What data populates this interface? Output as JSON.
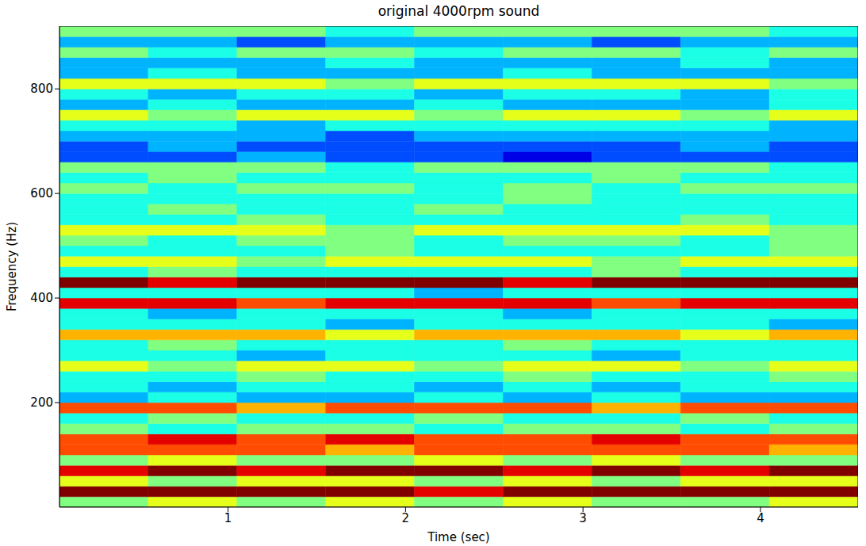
{
  "chart_data": {
    "type": "heatmap",
    "title": "original 4000rpm sound",
    "x_label": "Time (sec)",
    "y_label": "Frequency (Hz)",
    "xlim": [
      0.05,
      4.55
    ],
    "ylim": [
      0,
      920
    ],
    "xticks": [
      1,
      2,
      3,
      4
    ],
    "yticks": [
      200,
      400,
      600,
      800
    ],
    "color_range": [
      0,
      10
    ],
    "time_bins": [
      0.05,
      0.55,
      1.05,
      1.55,
      2.05,
      2.55,
      3.05,
      3.55,
      4.05,
      4.55
    ],
    "frequency_bins": [
      0,
      20,
      40,
      60,
      80,
      100,
      120,
      140,
      160,
      180,
      200,
      220,
      240,
      260,
      280,
      300,
      320,
      340,
      360,
      380,
      400,
      420,
      440,
      460,
      480,
      500,
      520,
      540,
      560,
      580,
      600,
      620,
      640,
      660,
      680,
      700,
      720,
      740,
      760,
      780,
      800,
      820,
      840,
      860,
      880,
      900,
      920
    ],
    "cells": [
      [
        5,
        6,
        5,
        6,
        5,
        6,
        5,
        5,
        6
      ],
      [
        10,
        10,
        10,
        10,
        9,
        10,
        10,
        10,
        10
      ],
      [
        6,
        5,
        6,
        6,
        5,
        6,
        5,
        6,
        6
      ],
      [
        9,
        10,
        9,
        10,
        10,
        9,
        10,
        9,
        10
      ],
      [
        5,
        6,
        5,
        5,
        6,
        5,
        6,
        5,
        5
      ],
      [
        8,
        8,
        8,
        7,
        8,
        8,
        8,
        8,
        7
      ],
      [
        8,
        9,
        8,
        9,
        8,
        8,
        9,
        8,
        8
      ],
      [
        5,
        4,
        5,
        5,
        4,
        5,
        5,
        4,
        5
      ],
      [
        4,
        5,
        4,
        4,
        5,
        4,
        4,
        5,
        4
      ],
      [
        8,
        8,
        7,
        8,
        8,
        8,
        7,
        8,
        8
      ],
      [
        3,
        4,
        3,
        3,
        4,
        3,
        4,
        3,
        3
      ],
      [
        4,
        3,
        4,
        4,
        3,
        4,
        3,
        4,
        4
      ],
      [
        4,
        4,
        5,
        4,
        4,
        5,
        4,
        4,
        5
      ],
      [
        6,
        5,
        6,
        6,
        5,
        6,
        6,
        5,
        6
      ],
      [
        4,
        4,
        3,
        4,
        4,
        4,
        3,
        4,
        4
      ],
      [
        4,
        5,
        4,
        4,
        4,
        5,
        4,
        4,
        4
      ],
      [
        7,
        7,
        7,
        6,
        7,
        7,
        7,
        6,
        7
      ],
      [
        4,
        4,
        4,
        3,
        4,
        4,
        4,
        4,
        3
      ],
      [
        4,
        3,
        4,
        4,
        4,
        3,
        4,
        4,
        4
      ],
      [
        9,
        9,
        8,
        9,
        9,
        9,
        8,
        9,
        9
      ],
      [
        4,
        4,
        4,
        4,
        3,
        4,
        4,
        4,
        4
      ],
      [
        10,
        9,
        10,
        10,
        10,
        9,
        10,
        10,
        10
      ],
      [
        4,
        5,
        4,
        4,
        4,
        4,
        5,
        4,
        4
      ],
      [
        6,
        6,
        5,
        6,
        6,
        6,
        5,
        6,
        6
      ],
      [
        4,
        4,
        4,
        5,
        4,
        4,
        4,
        4,
        5
      ],
      [
        5,
        4,
        5,
        5,
        4,
        5,
        5,
        4,
        5
      ],
      [
        6,
        6,
        6,
        5,
        6,
        6,
        6,
        6,
        5
      ],
      [
        4,
        4,
        5,
        4,
        4,
        4,
        4,
        5,
        4
      ],
      [
        4,
        5,
        4,
        4,
        5,
        4,
        4,
        4,
        4
      ],
      [
        4,
        4,
        4,
        4,
        4,
        5,
        4,
        4,
        4
      ],
      [
        5,
        4,
        5,
        5,
        4,
        5,
        4,
        5,
        5
      ],
      [
        4,
        5,
        4,
        4,
        4,
        4,
        5,
        4,
        4
      ],
      [
        5,
        5,
        5,
        4,
        5,
        5,
        5,
        5,
        4
      ],
      [
        2,
        2,
        3,
        2,
        2,
        1,
        2,
        2,
        2
      ],
      [
        2,
        3,
        2,
        2,
        2,
        2,
        2,
        3,
        2
      ],
      [
        3,
        3,
        3,
        2,
        3,
        3,
        3,
        3,
        3
      ],
      [
        4,
        4,
        3,
        4,
        4,
        4,
        4,
        4,
        3
      ],
      [
        6,
        5,
        6,
        6,
        5,
        6,
        6,
        5,
        6
      ],
      [
        3,
        4,
        3,
        3,
        4,
        3,
        3,
        3,
        4
      ],
      [
        4,
        3,
        4,
        4,
        3,
        4,
        4,
        3,
        4
      ],
      [
        6,
        6,
        6,
        5,
        6,
        6,
        6,
        6,
        5
      ],
      [
        3,
        4,
        3,
        3,
        3,
        4,
        3,
        3,
        3
      ],
      [
        3,
        3,
        3,
        4,
        3,
        3,
        3,
        4,
        3
      ],
      [
        5,
        4,
        5,
        5,
        4,
        5,
        5,
        4,
        5
      ],
      [
        3,
        3,
        2,
        3,
        3,
        3,
        2,
        3,
        3
      ],
      [
        5,
        5,
        5,
        4,
        5,
        5,
        5,
        5,
        4
      ]
    ]
  }
}
